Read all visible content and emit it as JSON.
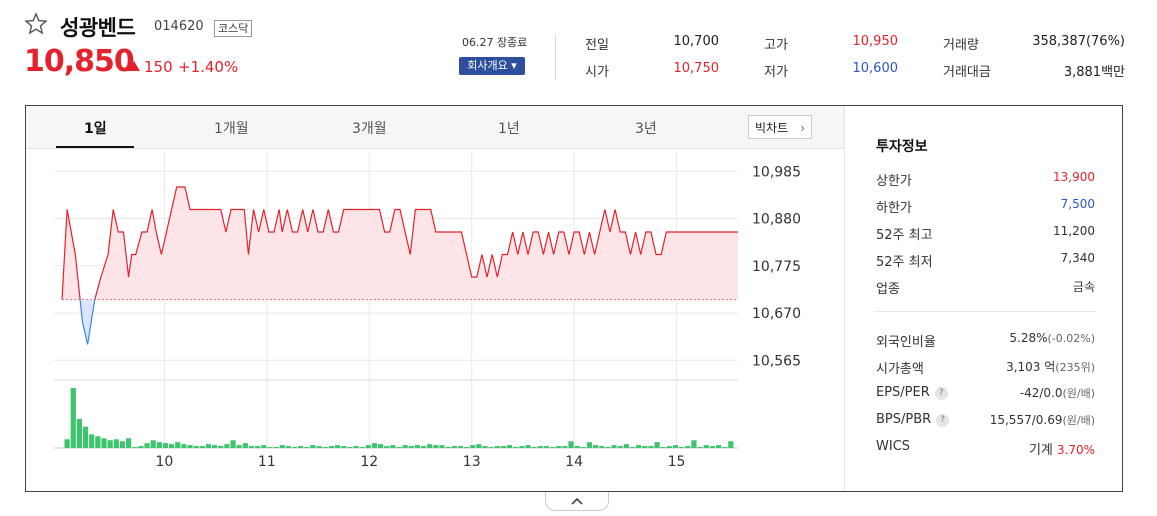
{
  "stock": {
    "name": "성광벤드",
    "code": "014620",
    "market": "코스닥",
    "price": "10,850",
    "change": "150",
    "change_pct": "+1.40%",
    "date_label": "06.27 장종료",
    "company_button": "회사개요 ▾"
  },
  "summary": [
    {
      "label": "전일",
      "value": "10,700",
      "color": "#222222"
    },
    {
      "label": "시가",
      "value": "10,750",
      "color": "#e4222c"
    },
    {
      "label": "고가",
      "value": "10,950",
      "color": "#e4222c"
    },
    {
      "label": "저가",
      "value": "10,600",
      "color": "#2d55c7"
    },
    {
      "label": "거래량",
      "value": "358,387(76%)",
      "color": "#222222"
    },
    {
      "label": "거래대금",
      "value": "3,881백만",
      "color": "#222222"
    }
  ],
  "tabs": [
    "1일",
    "1개월",
    "3개월",
    "1년",
    "3년"
  ],
  "active_tab": "1일",
  "big_chart_button": "빅차트",
  "invest": {
    "heading": "투자정보",
    "rows": [
      {
        "label": "상한가",
        "value": "13,900",
        "color": "#e4222c"
      },
      {
        "label": "하한가",
        "value": "7,500",
        "color": "#2d55c7"
      },
      {
        "label": "52주 최고",
        "value": "11,200",
        "color": "#333333"
      },
      {
        "label": "52주 최저",
        "value": "7,340",
        "color": "#333333"
      },
      {
        "label": "업종",
        "value": "금속",
        "color": "#333333"
      }
    ],
    "rows2": [
      {
        "label": "외국인비율",
        "value": "5.28%",
        "sub": "(-0.02%)",
        "help": false
      },
      {
        "label": "시가총액",
        "value": "3,103 억",
        "sub": "(235위)",
        "help": false
      },
      {
        "label": "EPS/PER",
        "value": "-42/0.0",
        "sub": "(원/배)",
        "help": true
      },
      {
        "label": "BPS/PBR",
        "value": "15,557/0.69",
        "sub": "(원/배)",
        "help": true
      },
      {
        "label": "WICS",
        "value": "기계",
        "sub": "3.70%",
        "help": false
      }
    ]
  },
  "colors": {
    "up": "#e4222c",
    "down": "#2d55c7",
    "fill_up": "#fde4e6",
    "volume": "#3ec46d"
  },
  "chart_data": {
    "type": "line",
    "base_price": 10700,
    "y_ticks": [
      "10,985",
      "10,880",
      "10,775",
      "10,670",
      "10,565"
    ],
    "y_tick_values": [
      10985,
      10880,
      10775,
      10670,
      10565
    ],
    "ylim": [
      10530,
      11010
    ],
    "x_ticks": [
      "10",
      "11",
      "12",
      "13",
      "14",
      "15"
    ],
    "x_tick_positions": [
      10,
      11,
      12,
      13,
      14,
      15
    ],
    "xlim": [
      9.0,
      15.6
    ],
    "series": [
      {
        "x": [
          9.0,
          9.05,
          9.13,
          9.2,
          9.25,
          9.32,
          9.38,
          9.45,
          9.5,
          9.55,
          9.6,
          9.65,
          9.68,
          9.72,
          9.78,
          9.83,
          9.88,
          9.92,
          9.97,
          10.02,
          10.07,
          10.12,
          10.2,
          10.25,
          10.3,
          10.35,
          10.4,
          10.45,
          10.5,
          10.55,
          10.6,
          10.65,
          10.7,
          10.75,
          10.78,
          10.82,
          10.87,
          10.92,
          10.97,
          11.02,
          11.07,
          11.12,
          11.15,
          11.2,
          11.25,
          11.3,
          11.35,
          11.4,
          11.45,
          11.5,
          11.55,
          11.6,
          11.65,
          11.7,
          11.75,
          11.8,
          11.85,
          11.9,
          11.95,
          12.0,
          12.05,
          12.1,
          12.15,
          12.2,
          12.25,
          12.3,
          12.35,
          12.4,
          12.45,
          12.5,
          12.55,
          12.6,
          12.65,
          12.7,
          12.75,
          12.8,
          12.85,
          12.9,
          12.95,
          13.0,
          13.05,
          13.1,
          13.15,
          13.2,
          13.25,
          13.3,
          13.35,
          13.4,
          13.45,
          13.5,
          13.55,
          13.6,
          13.65,
          13.7,
          13.75,
          13.8,
          13.85,
          13.9,
          13.95,
          14.0,
          14.05,
          14.1,
          14.15,
          14.2,
          14.25,
          14.3,
          14.35,
          14.4,
          14.45,
          14.5,
          14.55,
          14.6,
          14.65,
          14.7,
          14.75,
          14.8,
          14.85,
          14.9,
          14.95,
          15.0,
          15.05,
          15.1,
          15.15,
          15.2,
          15.25,
          15.3,
          15.35,
          15.4,
          15.45,
          15.5,
          15.6
        ],
        "y": [
          10700,
          10900,
          10800,
          10650,
          10600,
          10700,
          10750,
          10800,
          10900,
          10850,
          10850,
          10750,
          10800,
          10800,
          10850,
          10850,
          10900,
          10850,
          10800,
          10850,
          10900,
          10950,
          10950,
          10900,
          10900,
          10900,
          10900,
          10900,
          10900,
          10900,
          10850,
          10900,
          10900,
          10900,
          10900,
          10800,
          10900,
          10850,
          10900,
          10850,
          10850,
          10900,
          10850,
          10900,
          10850,
          10850,
          10900,
          10850,
          10900,
          10850,
          10850,
          10900,
          10850,
          10850,
          10900,
          10900,
          10900,
          10900,
          10900,
          10900,
          10900,
          10900,
          10850,
          10850,
          10900,
          10900,
          10850,
          10800,
          10900,
          10900,
          10900,
          10900,
          10850,
          10850,
          10850,
          10850,
          10850,
          10850,
          10800,
          10750,
          10750,
          10800,
          10750,
          10800,
          10750,
          10800,
          10800,
          10850,
          10800,
          10850,
          10800,
          10850,
          10850,
          10800,
          10850,
          10800,
          10850,
          10850,
          10800,
          10850,
          10850,
          10800,
          10850,
          10800,
          10850,
          10900,
          10850,
          10900,
          10850,
          10850,
          10800,
          10850,
          10800,
          10850,
          10850,
          10800,
          10800,
          10850,
          10850,
          10850,
          10850,
          10850,
          10850,
          10850,
          10850,
          10850,
          10850,
          10850,
          10850,
          10850,
          10850
        ],
        "name": ""
      }
    ],
    "volume": {
      "x": [
        9.05,
        9.11,
        9.17,
        9.23,
        9.29,
        9.35,
        9.41,
        9.47,
        9.53,
        9.59,
        9.65,
        9.71,
        9.77,
        9.83,
        9.89,
        9.95,
        10.01,
        10.07,
        10.13,
        10.19,
        10.25,
        10.31,
        10.37,
        10.43,
        10.49,
        10.55,
        10.61,
        10.67,
        10.73,
        10.79,
        10.85,
        10.91,
        10.97,
        11.03,
        11.09,
        11.15,
        11.21,
        11.27,
        11.33,
        11.39,
        11.45,
        11.51,
        11.57,
        11.63,
        11.69,
        11.75,
        11.81,
        11.87,
        11.93,
        11.99,
        12.05,
        12.11,
        12.17,
        12.23,
        12.29,
        12.35,
        12.41,
        12.47,
        12.53,
        12.59,
        12.65,
        12.71,
        12.77,
        12.83,
        12.89,
        12.95,
        13.01,
        13.07,
        13.13,
        13.19,
        13.25,
        13.31,
        13.37,
        13.43,
        13.49,
        13.55,
        13.61,
        13.67,
        13.73,
        13.79,
        13.85,
        13.91,
        13.97,
        14.03,
        14.09,
        14.15,
        14.21,
        14.27,
        14.33,
        14.39,
        14.45,
        14.51,
        14.57,
        14.63,
        14.69,
        14.75,
        14.81,
        14.87,
        14.93,
        14.99,
        15.05,
        15.11,
        15.17,
        15.23,
        15.29,
        15.35,
        15.41,
        15.47,
        15.53
      ],
      "values": [
        9,
        62,
        30,
        22,
        14,
        12,
        10,
        8,
        9,
        7,
        10,
        1,
        2,
        5,
        8,
        6,
        5,
        4,
        6,
        4,
        3,
        2,
        2,
        4,
        3,
        2,
        4,
        8,
        3,
        5,
        2,
        2,
        3,
        1,
        1,
        3,
        2,
        1,
        2,
        1,
        3,
        2,
        1,
        2,
        3,
        2,
        1,
        2,
        1,
        3,
        5,
        4,
        2,
        3,
        1,
        3,
        2,
        3,
        2,
        4,
        3,
        3,
        1,
        2,
        2,
        1,
        3,
        4,
        2,
        1,
        2,
        2,
        3,
        1,
        2,
        3,
        1,
        2,
        2,
        1,
        2,
        2,
        7,
        2,
        1,
        6,
        3,
        2,
        1,
        3,
        2,
        4,
        1,
        3,
        2,
        2,
        6,
        1,
        2,
        3,
        1,
        2,
        8,
        1,
        3,
        2,
        3,
        1,
        7
      ],
      "ymax": 66
    }
  }
}
